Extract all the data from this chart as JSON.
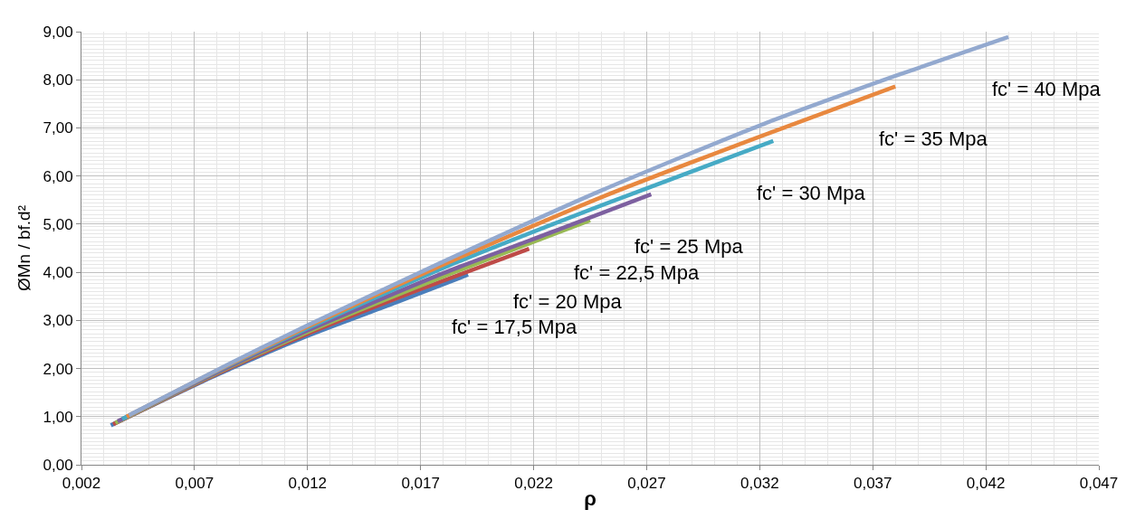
{
  "chart_data": {
    "type": "line",
    "xlabel": "ρ",
    "ylabel": "ØMn / bf.d²",
    "xlim": [
      0.002,
      0.047
    ],
    "ylim": [
      0,
      9
    ],
    "xticks": [
      {
        "value": 0.002,
        "label": "0,002"
      },
      {
        "value": 0.007,
        "label": "0,007"
      },
      {
        "value": 0.012,
        "label": "0,012"
      },
      {
        "value": 0.017,
        "label": "0,017"
      },
      {
        "value": 0.022,
        "label": "0,022"
      },
      {
        "value": 0.027,
        "label": "0,027"
      },
      {
        "value": 0.032,
        "label": "0,032"
      },
      {
        "value": 0.037,
        "label": "0,037"
      },
      {
        "value": 0.042,
        "label": "0,042"
      },
      {
        "value": 0.047,
        "label": "0,047"
      }
    ],
    "yticks": [
      {
        "value": 0,
        "label": "0,00"
      },
      {
        "value": 1,
        "label": "1,00"
      },
      {
        "value": 2,
        "label": "2,00"
      },
      {
        "value": 3,
        "label": "3,00"
      },
      {
        "value": 4,
        "label": "4,00"
      },
      {
        "value": 5,
        "label": "5,00"
      },
      {
        "value": 6,
        "label": "6,00"
      },
      {
        "value": 7,
        "label": "7,00"
      },
      {
        "value": 8,
        "label": "8,00"
      },
      {
        "value": 9,
        "label": "9,00"
      }
    ],
    "grid": true,
    "legend": false,
    "marker": "none",
    "line_style": "solid",
    "series": [
      {
        "name": "fc' = 17,5 Mpa",
        "color": "#4a7ebb",
        "x": [
          0.0033,
          0.008,
          0.012,
          0.016,
          0.0191
        ],
        "values": [
          0.82,
          1.87,
          2.68,
          3.39,
          3.95
        ]
      },
      {
        "name": "fc' = 20 Mpa",
        "color": "#be4b48",
        "x": [
          0.0034,
          0.008,
          0.012,
          0.017,
          0.0218
        ],
        "values": [
          0.84,
          1.89,
          2.72,
          3.65,
          4.49
        ]
      },
      {
        "name": "fc' = 22,5 Mpa",
        "color": "#98b954",
        "x": [
          0.0035,
          0.008,
          0.012,
          0.018,
          0.0245
        ],
        "values": [
          0.87,
          1.91,
          2.76,
          3.91,
          5.08
        ]
      },
      {
        "name": "fc' = 25 Mpa",
        "color": "#7d60a0",
        "x": [
          0.0036,
          0.008,
          0.012,
          0.018,
          0.023,
          0.0272
        ],
        "values": [
          0.9,
          1.92,
          2.79,
          3.98,
          4.87,
          5.62
        ]
      },
      {
        "name": "fc' = 30 Mpa",
        "color": "#46aac5",
        "x": [
          0.0038,
          0.008,
          0.012,
          0.018,
          0.025,
          0.0326
        ],
        "values": [
          0.95,
          1.95,
          2.84,
          4.09,
          5.39,
          6.73
        ]
      },
      {
        "name": "fc' = 35 Mpa",
        "color": "#e8883f",
        "x": [
          0.004,
          0.008,
          0.012,
          0.018,
          0.025,
          0.032,
          0.038
        ],
        "values": [
          1.0,
          1.96,
          2.87,
          4.16,
          5.56,
          6.82,
          7.86
        ]
      },
      {
        "name": "fc' = 40 Mpa",
        "color": "#93a9cf",
        "x": [
          0.0041,
          0.008,
          0.012,
          0.018,
          0.025,
          0.032,
          0.038,
          0.043
        ],
        "values": [
          1.03,
          1.97,
          2.9,
          4.22,
          5.7,
          7.05,
          8.08,
          8.89
        ]
      }
    ]
  }
}
